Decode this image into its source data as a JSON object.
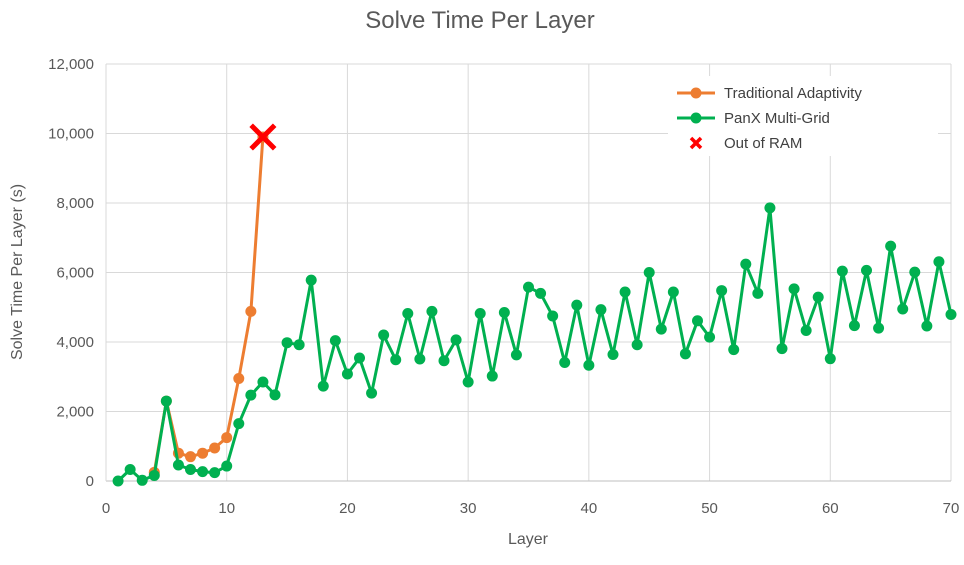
{
  "chart_data": {
    "type": "line",
    "title": "Solve Time Per Layer",
    "xlabel": "Layer",
    "ylabel": "Solve Time Per Layer (s)",
    "xlim": [
      0,
      70
    ],
    "ylim": [
      0,
      12000
    ],
    "x_ticks": [
      0,
      10,
      20,
      30,
      40,
      50,
      60,
      70
    ],
    "y_ticks": [
      0,
      2000,
      4000,
      6000,
      8000,
      10000,
      12000
    ],
    "x_tick_labels": [
      "0",
      "10",
      "20",
      "30",
      "40",
      "50",
      "60",
      "70"
    ],
    "y_tick_labels": [
      "0",
      "2,000",
      "4,000",
      "6,000",
      "8,000",
      "10,000",
      "12,000"
    ],
    "grid": true,
    "legend_position": "top-right",
    "series": [
      {
        "name": "Traditional Adaptivity",
        "color": "#ED7D31",
        "x": [
          4,
          5,
          6,
          7,
          8,
          9,
          10,
          11,
          12,
          13
        ],
        "y": [
          250,
          2300,
          800,
          700,
          800,
          950,
          1250,
          2950,
          4880,
          9900
        ]
      },
      {
        "name": "PanX Multi-Grid",
        "color": "#00B050",
        "x": [
          1,
          2,
          3,
          4,
          5,
          6,
          7,
          8,
          9,
          10,
          11,
          12,
          13,
          14,
          15,
          16,
          17,
          18,
          19,
          20,
          21,
          22,
          23,
          24,
          25,
          26,
          27,
          28,
          29,
          30,
          31,
          32,
          33,
          34,
          35,
          36,
          37,
          38,
          39,
          40,
          41,
          42,
          43,
          44,
          45,
          46,
          47,
          48,
          49,
          50,
          51,
          52,
          53,
          54,
          55,
          56,
          57,
          58,
          59,
          60,
          61,
          62,
          63,
          64,
          65,
          66,
          67,
          68,
          69,
          70
        ],
        "y": [
          0,
          330,
          20,
          160,
          2300,
          460,
          330,
          270,
          240,
          430,
          1650,
          2470,
          2850,
          2480,
          3980,
          3920,
          5780,
          2730,
          4040,
          3080,
          3540,
          2530,
          4200,
          3490,
          4820,
          3510,
          4880,
          3460,
          4060,
          2850,
          4820,
          3020,
          4850,
          3630,
          5580,
          5400,
          4750,
          3410,
          5060,
          3330,
          4930,
          3640,
          5440,
          3920,
          6000,
          4370,
          5440,
          3660,
          4610,
          4140,
          5480,
          3780,
          6240,
          5400,
          7860,
          3810,
          5530,
          4330,
          5290,
          3520,
          6040,
          4470,
          6060,
          4400,
          6760,
          4950,
          6010,
          4460,
          6310,
          4790
        ]
      }
    ],
    "markers": [
      {
        "name": "Out of RAM",
        "color": "#FF0000",
        "shape": "x",
        "x": 13,
        "y": 9900
      }
    ]
  }
}
